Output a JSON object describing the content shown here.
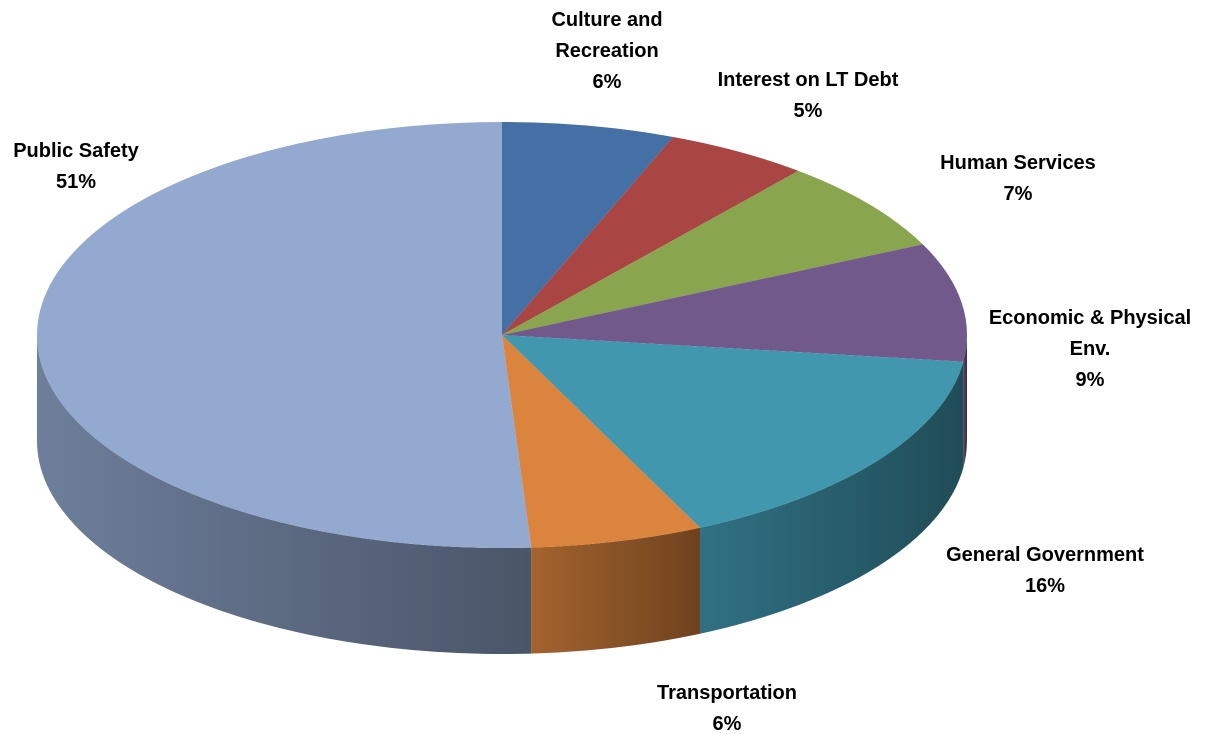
{
  "chart_data": {
    "type": "pie",
    "categories": [
      "Culture and Recreation",
      "Interest on LT Debt",
      "Human Services",
      "Economic & Physical Env.",
      "General Government",
      "Transportation",
      "Public Safety"
    ],
    "values": [
      6,
      5,
      7,
      9,
      16,
      6,
      51
    ],
    "value_labels": [
      "6%",
      "5%",
      "7%",
      "9%",
      "16%",
      "6%",
      "51%"
    ],
    "colors": [
      "#4470a5",
      "#a94543",
      "#89a54e",
      "#71598c",
      "#4097ae",
      "#db843d",
      "#93a9cf"
    ]
  }
}
